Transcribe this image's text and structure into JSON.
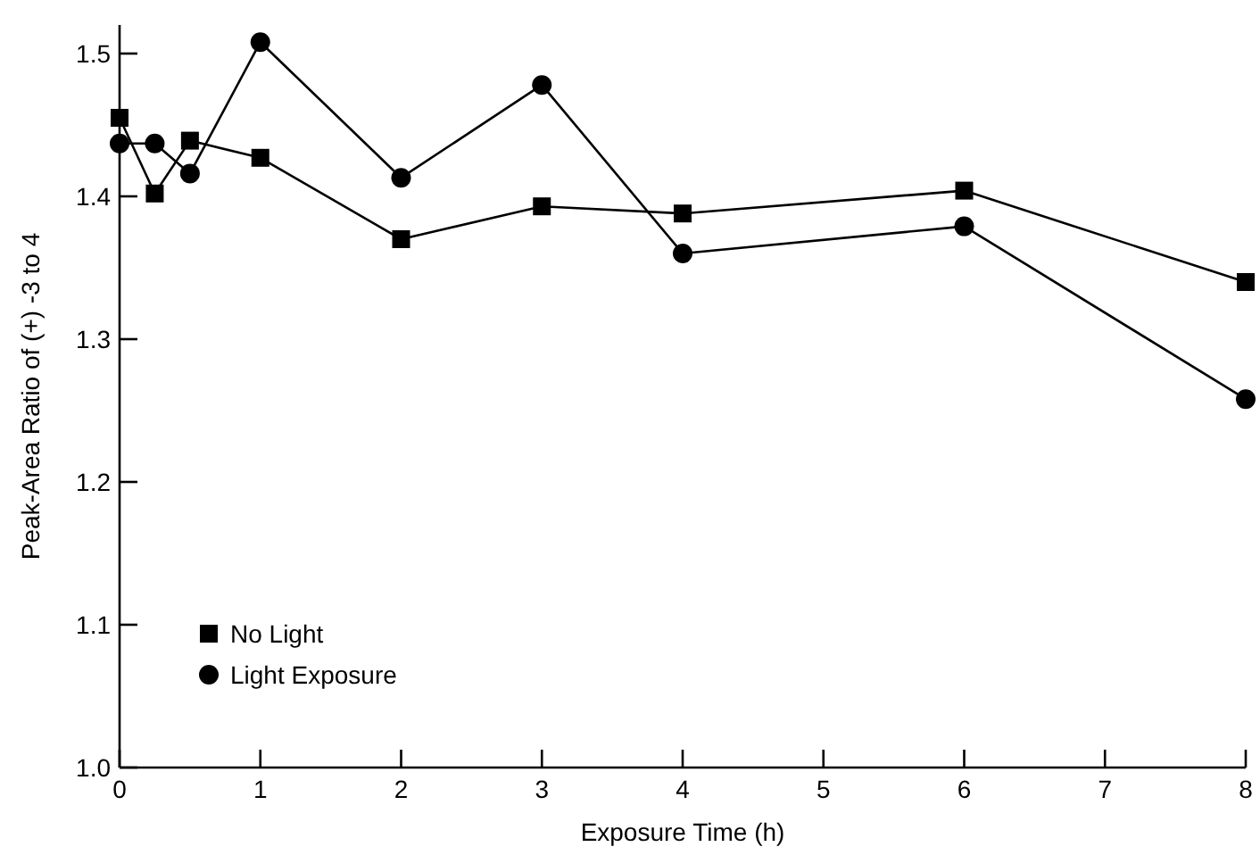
{
  "chart_data": {
    "type": "line",
    "xlabel": "Exposure Time (h)",
    "ylabel": "Peak-Area Ratio of (+) -3 to 4",
    "xlim": [
      0,
      8
    ],
    "xticks": [
      0,
      1,
      2,
      3,
      4,
      5,
      6,
      7,
      8
    ],
    "ylim": [
      1.0,
      1.52
    ],
    "yticks": [
      {
        "value": 1.0,
        "label": "1.0"
      },
      {
        "value": 1.1,
        "label": "1.1"
      },
      {
        "value": 1.2,
        "label": "1.2"
      },
      {
        "value": 1.3,
        "label": "1.3"
      },
      {
        "value": 1.4,
        "label": "1.4"
      },
      {
        "value": 1.5,
        "label": "1.5"
      }
    ],
    "legend": "bottom left",
    "grid": false,
    "series": [
      {
        "name": "No Light",
        "color": "#000000",
        "marker": "square",
        "x": [
          0,
          0.25,
          0.5,
          1,
          2,
          3,
          4,
          6,
          8
        ],
        "values": [
          1.455,
          1.402,
          1.439,
          1.427,
          1.37,
          1.393,
          1.388,
          1.404,
          1.34
        ]
      },
      {
        "name": "Light Exposure",
        "color": "#000000",
        "marker": "circle",
        "x": [
          0,
          0.25,
          0.5,
          1,
          2,
          3,
          4,
          6,
          8
        ],
        "values": [
          1.437,
          1.437,
          1.416,
          1.508,
          1.413,
          1.478,
          1.36,
          1.379,
          1.258
        ]
      }
    ]
  }
}
